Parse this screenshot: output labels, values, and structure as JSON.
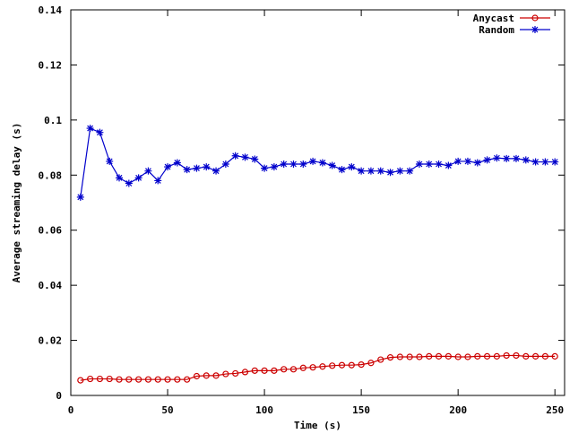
{
  "chart_data": {
    "type": "line",
    "xlabel": "Time (s)",
    "ylabel": "Average streaming delay (s)",
    "xlim": [
      0,
      255
    ],
    "ylim": [
      0,
      0.14
    ],
    "xticks": [
      0,
      50,
      100,
      150,
      200,
      250
    ],
    "yticks": [
      0,
      0.02,
      0.04,
      0.06,
      0.08,
      0.1,
      0.12,
      0.14
    ],
    "xtick_labels": [
      "0",
      "50",
      "100",
      "150",
      "200",
      "250"
    ],
    "ytick_labels": [
      "0",
      "0.02",
      "0.04",
      "0.06",
      "0.08",
      "0.1",
      "0.12",
      "0.14"
    ],
    "grid": false,
    "legend_position": "top-right",
    "series": [
      {
        "name": "Anycast",
        "color": "#cc0000",
        "marker": "circle",
        "x": [
          5,
          10,
          15,
          20,
          25,
          30,
          35,
          40,
          45,
          50,
          55,
          60,
          65,
          70,
          75,
          80,
          85,
          90,
          95,
          100,
          105,
          110,
          115,
          120,
          125,
          130,
          135,
          140,
          145,
          150,
          155,
          160,
          165,
          170,
          175,
          180,
          185,
          190,
          195,
          200,
          205,
          210,
          215,
          220,
          225,
          230,
          235,
          240,
          245,
          250
        ],
        "values": [
          0.0055,
          0.006,
          0.006,
          0.006,
          0.0058,
          0.0058,
          0.0058,
          0.0058,
          0.0058,
          0.0058,
          0.0058,
          0.0058,
          0.007,
          0.0072,
          0.0072,
          0.0078,
          0.008,
          0.0085,
          0.009,
          0.009,
          0.009,
          0.0095,
          0.0095,
          0.01,
          0.0102,
          0.0105,
          0.0108,
          0.011,
          0.011,
          0.0112,
          0.0118,
          0.013,
          0.0138,
          0.014,
          0.014,
          0.014,
          0.0142,
          0.0142,
          0.0142,
          0.014,
          0.014,
          0.0142,
          0.0142,
          0.0142,
          0.0145,
          0.0145,
          0.0142,
          0.0142,
          0.0142,
          0.0142
        ]
      },
      {
        "name": "Random",
        "color": "#0000cc",
        "marker": "star",
        "x": [
          5,
          10,
          15,
          20,
          25,
          30,
          35,
          40,
          45,
          50,
          55,
          60,
          65,
          70,
          75,
          80,
          85,
          90,
          95,
          100,
          105,
          110,
          115,
          120,
          125,
          130,
          135,
          140,
          145,
          150,
          155,
          160,
          165,
          170,
          175,
          180,
          185,
          190,
          195,
          200,
          205,
          210,
          215,
          220,
          225,
          230,
          235,
          240,
          245,
          250
        ],
        "values": [
          0.072,
          0.097,
          0.0955,
          0.085,
          0.079,
          0.077,
          0.079,
          0.0815,
          0.078,
          0.083,
          0.0845,
          0.082,
          0.0825,
          0.083,
          0.0815,
          0.084,
          0.087,
          0.0865,
          0.0858,
          0.0825,
          0.083,
          0.084,
          0.084,
          0.084,
          0.085,
          0.0845,
          0.0835,
          0.082,
          0.083,
          0.0815,
          0.0815,
          0.0815,
          0.081,
          0.0815,
          0.0815,
          0.084,
          0.084,
          0.084,
          0.0835,
          0.085,
          0.085,
          0.0845,
          0.0855,
          0.0862,
          0.086,
          0.086,
          0.0855,
          0.0848,
          0.0848,
          0.0848
        ]
      }
    ]
  }
}
